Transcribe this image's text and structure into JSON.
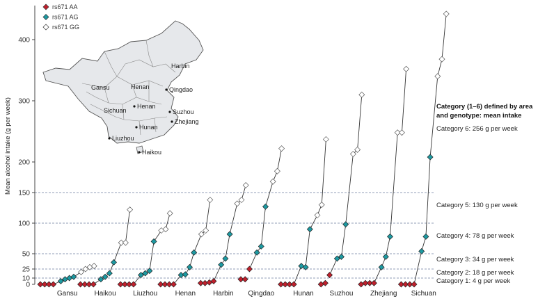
{
  "chart_data": {
    "type": "line",
    "ylabel": "Mean alcohol intake (g per week)",
    "yticks": [
      0,
      10,
      25,
      50,
      100,
      150,
      200,
      300,
      400
    ],
    "ylim": [
      0,
      440
    ],
    "grid": false,
    "legend_placement": "top-left",
    "legend": [
      {
        "name": "rs671 AA",
        "color": "#c0202c",
        "marker": "diamond"
      },
      {
        "name": "rs671 AG",
        "color": "#1d9aa2",
        "marker": "diamond"
      },
      {
        "name": "rs671 GG",
        "color": "#ffffff",
        "marker": "diamond"
      }
    ],
    "category_heading": [
      "Category (1–6) defined by area",
      "and genotype: mean intake"
    ],
    "category_lines": [
      {
        "label": "Category 6: 256 g per week",
        "value": 256,
        "dashed": false
      },
      {
        "label": "Category 5: 130 g per week",
        "value": 150,
        "dashed": true
      },
      {
        "label": "Category 4: 78 g per week",
        "value": 100,
        "dashed": true
      },
      {
        "label": "Category 3: 34 g per week",
        "value": 50,
        "dashed": true
      },
      {
        "label": "Category 2: 18 g per week",
        "value": 25,
        "dashed": true
      },
      {
        "label": "Category 1: 4 g per week",
        "value": 10,
        "dashed": true
      }
    ],
    "areas": [
      {
        "name": "Gansu",
        "AA": [
          0,
          0,
          0,
          0
        ],
        "AG": [
          5,
          8,
          10,
          12
        ],
        "GG": [
          20,
          25,
          28,
          30
        ]
      },
      {
        "name": "Haikou",
        "AA": [
          0,
          0,
          0,
          0
        ],
        "AG": [
          8,
          12,
          18,
          36
        ],
        "GG": [
          68,
          68,
          122
        ]
      },
      {
        "name": "Liuzhou",
        "AA": [
          0,
          0,
          0,
          0
        ],
        "AG": [
          15,
          18,
          22,
          70
        ],
        "GG": [
          88,
          90,
          116
        ]
      },
      {
        "name": "Henan",
        "AA": [
          0,
          0,
          0,
          0
        ],
        "AG": [
          15,
          16,
          28,
          52
        ],
        "GG": [
          82,
          88,
          138
        ]
      },
      {
        "name": "Harbin",
        "AA": [
          2,
          2,
          3,
          5
        ],
        "AG": [
          32,
          42,
          82
        ],
        "GG": [
          132,
          138,
          162
        ]
      },
      {
        "name": "Qingdao",
        "AA": [
          8,
          8,
          25
        ],
        "AG": [
          52,
          62,
          127
        ],
        "GG": [
          168,
          185,
          222
        ]
      },
      {
        "name": "Hunan",
        "AA": [
          0,
          0,
          0,
          0
        ],
        "AG": [
          30,
          28,
          90
        ],
        "GG": [
          113,
          130,
          237
        ]
      },
      {
        "name": "Suzhou",
        "AA": [
          0,
          2,
          15
        ],
        "AG": [
          42,
          45,
          98
        ],
        "GG": [
          213,
          220,
          310
        ]
      },
      {
        "name": "Zhejiang",
        "AA": [
          0,
          2,
          2,
          2
        ],
        "AG": [
          28,
          45,
          78
        ],
        "GG": [
          248,
          248,
          352
        ]
      },
      {
        "name": "Sichuan",
        "AA": [
          0,
          0,
          0,
          0
        ],
        "AG": [
          54,
          78,
          208
        ],
        "GG": [
          340,
          368,
          442
        ]
      }
    ]
  },
  "map": {
    "labels": [
      {
        "name": "Harbin",
        "dot": false
      },
      {
        "name": "Gansu",
        "dot": false
      },
      {
        "name": "Henan",
        "dot": false
      },
      {
        "name": "Qingdao",
        "dot": true
      },
      {
        "name": "Sichuan",
        "dot": false
      },
      {
        "name": "Henan",
        "dot": true
      },
      {
        "name": "Suzhou",
        "dot": true
      },
      {
        "name": "Zhejiang",
        "dot": true
      },
      {
        "name": "Hunan",
        "dot": true
      },
      {
        "name": "Liuzhou",
        "dot": true
      },
      {
        "name": "Haikou",
        "dot": true
      }
    ]
  }
}
